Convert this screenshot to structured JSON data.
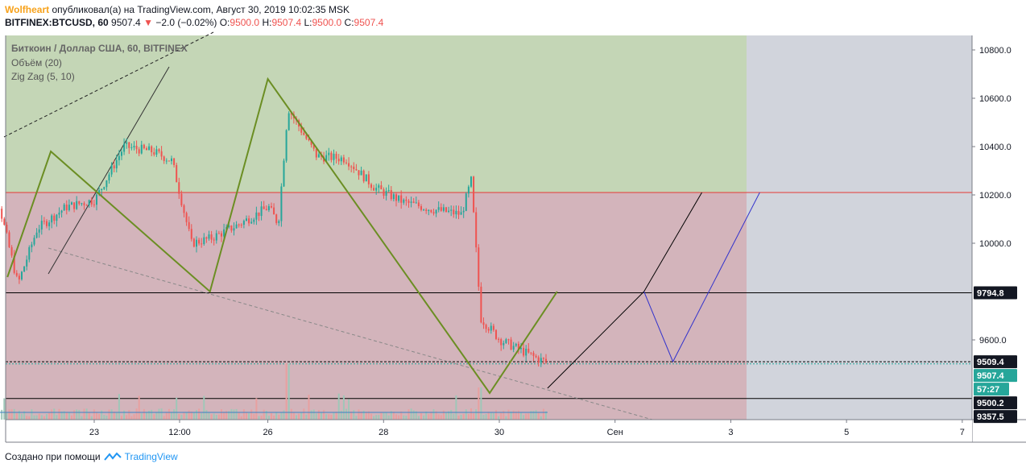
{
  "header": {
    "author": "Wolfheart",
    "published": "опубликовал(а) на TradingView.com, Август 30, 2019 10:02:35 MSK",
    "symbol": "BITFINEX:BTCUSD, 60",
    "last": "9507.4",
    "change": "−2.0 (−0.02%)",
    "o_label": "O:",
    "o_value": "9500.0",
    "h_label": "H:",
    "h_value": "9507.4",
    "l_label": "L:",
    "l_value": "9500.0",
    "c_label": "C:",
    "c_value": "9507.4"
  },
  "legend": {
    "title": "Биткоин / Доллар США, 60, BITFINEX",
    "volume": "Объём (20)",
    "zigzag": "Zig Zag (5, 10)"
  },
  "footer": {
    "created": "Создано при помощи",
    "brand": "TradingView"
  },
  "colors": {
    "green_zone": "#c4d6b6",
    "red_zone": "#d3b4bb",
    "future_zone": "#d1d4dc",
    "zigzag": "#6b8e23",
    "price_up": "#26a69a",
    "price_down": "#ef5350",
    "scenario_black": "#000000",
    "scenario_blue": "#3333cc"
  },
  "chart_data": {
    "type": "candlestick",
    "ylim": [
      9270,
      10860
    ],
    "y_ticks": [
      10800,
      10600,
      10400,
      10200,
      10000,
      9600
    ],
    "x_ticks": [
      "23",
      "12:00",
      "26",
      "28",
      "30",
      "Сен",
      "3",
      "5",
      "7"
    ],
    "price_labels": [
      {
        "text": "9794.8",
        "value": 9794.8,
        "style": "black"
      },
      {
        "text": "9509.4",
        "value": 9509.4,
        "style": "black"
      },
      {
        "text": "9507.4",
        "value": 9507.4,
        "style": "teal"
      },
      {
        "text": "57:27",
        "value": 9462,
        "style": "teal"
      },
      {
        "text": "9500.2",
        "value": 9500.2,
        "style": "black"
      },
      {
        "text": "9357.5",
        "value": 9357.5,
        "style": "black"
      }
    ],
    "horizontal_levels": [
      10210,
      9794.8,
      9509.4,
      9357.5
    ],
    "zones": [
      {
        "name": "target-zone",
        "from": 10210,
        "to": 10860
      },
      {
        "name": "loss-zone",
        "from": 9270,
        "to": 10210
      }
    ],
    "zigzag_points": [
      [
        "21 12:00",
        9860
      ],
      [
        "22 06:00",
        10380
      ],
      [
        "25 00:00",
        9800
      ],
      [
        "26 00:00",
        10680
      ],
      [
        "29 20:00",
        9380
      ],
      [
        "31 00:00",
        9800
      ]
    ],
    "candles_close_path": [
      [
        "21 00:00",
        10000
      ],
      [
        "21 08:00",
        10170
      ],
      [
        "21 16:00",
        9830
      ],
      [
        "22 00:00",
        10060
      ],
      [
        "22 12:00",
        10150
      ],
      [
        "23 00:00",
        10180
      ],
      [
        "23 12:00",
        10400
      ],
      [
        "24 00:00",
        10380
      ],
      [
        "24 08:00",
        10340
      ],
      [
        "24 16:00",
        10000
      ],
      [
        "25 00:00",
        10020
      ],
      [
        "25 12:00",
        10080
      ],
      [
        "26 00:00",
        10150
      ],
      [
        "26 04:00",
        10080
      ],
      [
        "26 08:00",
        10560
      ],
      [
        "26 20:00",
        10360
      ],
      [
        "27 08:00",
        10350
      ],
      [
        "27 20:00",
        10230
      ],
      [
        "28 08:00",
        10170
      ],
      [
        "28 20:00",
        10140
      ],
      [
        "29 08:00",
        10120
      ],
      [
        "29 12:00",
        10260
      ],
      [
        "29 16:00",
        9690
      ],
      [
        "30 00:00",
        9600
      ],
      [
        "30 08:00",
        9560
      ],
      [
        "30 16:00",
        9520
      ],
      [
        "30 20:00",
        9507.4
      ]
    ],
    "scenario_black": [
      [
        "30 20:00",
        9400
      ],
      [
        "1 12:00",
        9800
      ],
      [
        "2 12:00",
        10210
      ]
    ],
    "scenario_blue": [
      [
        "1 12:00",
        9800
      ],
      [
        "2 00:00",
        9510
      ],
      [
        "3 12:00",
        10210
      ]
    ]
  }
}
